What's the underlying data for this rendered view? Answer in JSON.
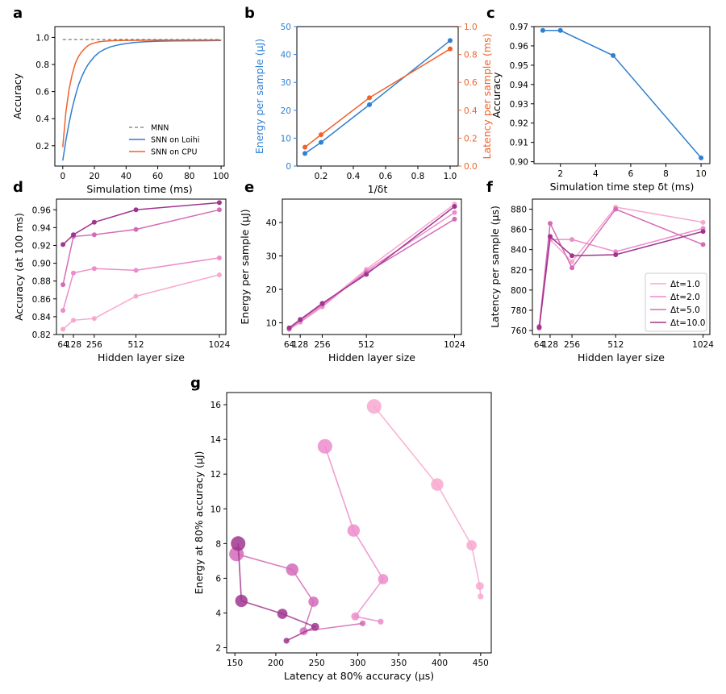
{
  "colors": {
    "blue": "#2f7fd1",
    "orange": "#f0622a",
    "mnn": "#555555",
    "dt1": "#f7a8cf",
    "dt2": "#ec8ccc",
    "dt5": "#d46bb8",
    "dt10": "#a0358f",
    "axis": "#000000"
  },
  "chart_data": [
    {
      "id": "a",
      "type": "line",
      "panel_label": "a",
      "title": "",
      "xlabel": "Simulation time (ms)",
      "ylabel": "Accuracy",
      "xlim": [
        -5,
        102
      ],
      "ylim": [
        0.05,
        1.08
      ],
      "xticks": [
        "0",
        "20",
        "40",
        "60",
        "80",
        "100"
      ],
      "yticks": [
        "0.2",
        "0.4",
        "0.6",
        "0.8",
        "1.0"
      ],
      "legend_position": "bottom-right",
      "series": [
        {
          "name": "MNN",
          "color": "mnn",
          "dash": true,
          "x": [
            0,
            100
          ],
          "y": [
            0.985,
            0.985
          ]
        },
        {
          "name": "SNN on Loihi",
          "color": "blue",
          "x": [
            0,
            2,
            4,
            6,
            8,
            10,
            12,
            14,
            16,
            18,
            20,
            23,
            26,
            30,
            35,
            40,
            45,
            50,
            60,
            70,
            80,
            90,
            100
          ],
          "y": [
            0.09,
            0.24,
            0.37,
            0.48,
            0.57,
            0.65,
            0.71,
            0.76,
            0.8,
            0.83,
            0.86,
            0.89,
            0.91,
            0.93,
            0.945,
            0.955,
            0.962,
            0.967,
            0.972,
            0.974,
            0.975,
            0.976,
            0.977
          ]
        },
        {
          "name": "SNN on CPU",
          "color": "orange",
          "x": [
            0,
            2,
            4,
            6,
            8,
            10,
            12,
            14,
            16,
            18,
            20,
            23,
            26,
            30,
            35,
            40,
            50,
            60,
            80,
            100
          ],
          "y": [
            0.19,
            0.45,
            0.62,
            0.73,
            0.81,
            0.86,
            0.895,
            0.92,
            0.94,
            0.952,
            0.96,
            0.968,
            0.972,
            0.975,
            0.977,
            0.978,
            0.979,
            0.98,
            0.98,
            0.98
          ]
        }
      ]
    },
    {
      "id": "b",
      "type": "line",
      "panel_label": "b",
      "xlabel": "1/δt",
      "ylabel": "Energy per sample (μJ)",
      "ylabel_right": "Latency per sample (ms)",
      "xlim": [
        0.05,
        1.05
      ],
      "ylim": [
        0,
        50
      ],
      "ylim_right": [
        0,
        1.0
      ],
      "xticks": [
        "0.2",
        "0.4",
        "0.6",
        "0.8",
        "1.0"
      ],
      "yticks": [
        "0",
        "10",
        "20",
        "30",
        "40",
        "50"
      ],
      "yticks_right": [
        "0.0",
        "0.2",
        "0.4",
        "0.6",
        "0.8",
        "1.0"
      ],
      "series": [
        {
          "name": "Energy",
          "color": "blue",
          "axis": "left",
          "x": [
            0.1,
            0.2,
            0.5,
            1.0
          ],
          "y": [
            4.5,
            8.5,
            22.0,
            45.0
          ]
        },
        {
          "name": "Latency",
          "color": "orange",
          "axis": "right",
          "x": [
            0.1,
            0.2,
            0.5,
            1.0
          ],
          "y": [
            0.135,
            0.225,
            0.49,
            0.84
          ]
        }
      ]
    },
    {
      "id": "c",
      "type": "line",
      "panel_label": "c",
      "xlabel": "Simulation time step δt (ms)",
      "ylabel": "Accuracy",
      "xlim": [
        0.5,
        10.5
      ],
      "ylim": [
        0.899,
        0.97
      ],
      "xticks": [
        "2",
        "4",
        "6",
        "8",
        "10"
      ],
      "yticks": [
        "0.90",
        "0.91",
        "0.92",
        "0.93",
        "0.94",
        "0.95",
        "0.96",
        "0.97"
      ],
      "series": [
        {
          "name": "Accuracy",
          "color": "blue",
          "x": [
            1,
            2,
            5,
            10
          ],
          "y": [
            0.968,
            0.968,
            0.955,
            0.902
          ]
        }
      ]
    },
    {
      "id": "d",
      "type": "line",
      "panel_label": "d",
      "xlabel": "Hidden layer size",
      "ylabel": "Accuracy (at 100 ms)",
      "xlim": [
        24,
        1064
      ],
      "ylim": [
        0.82,
        0.972
      ],
      "xticks": [
        "64",
        "128",
        "256",
        "512",
        "1024"
      ],
      "yticks": [
        "0.82",
        "0.84",
        "0.86",
        "0.88",
        "0.90",
        "0.92",
        "0.94",
        "0.96"
      ],
      "series": [
        {
          "name": "Δt=1.0",
          "color": "dt1",
          "x": [
            64,
            128,
            256,
            512,
            1024
          ],
          "y": [
            0.826,
            0.836,
            0.838,
            0.863,
            0.887
          ]
        },
        {
          "name": "Δt=2.0",
          "color": "dt2",
          "x": [
            64,
            128,
            256,
            512,
            1024
          ],
          "y": [
            0.847,
            0.889,
            0.894,
            0.892,
            0.906
          ]
        },
        {
          "name": "Δt=5.0",
          "color": "dt5",
          "x": [
            64,
            128,
            256,
            512,
            1024
          ],
          "y": [
            0.876,
            0.93,
            0.932,
            0.938,
            0.96
          ]
        },
        {
          "name": "Δt=10.0",
          "color": "dt10",
          "x": [
            64,
            128,
            256,
            512,
            1024
          ],
          "y": [
            0.921,
            0.932,
            0.946,
            0.96,
            0.968
          ]
        }
      ]
    },
    {
      "id": "e",
      "type": "line",
      "panel_label": "e",
      "xlabel": "Hidden layer size",
      "ylabel": "Energy per sample (μJ)",
      "xlim": [
        24,
        1064
      ],
      "ylim": [
        6.5,
        47
      ],
      "xticks": [
        "64",
        "128",
        "256",
        "512",
        "1024"
      ],
      "yticks": [
        "10",
        "20",
        "30",
        "40"
      ],
      "series": [
        {
          "name": "Δt=1.0",
          "color": "dt1",
          "x": [
            64,
            128,
            256,
            512,
            1024
          ],
          "y": [
            8.2,
            10.5,
            15.2,
            26.0,
            45.5
          ]
        },
        {
          "name": "Δt=2.0",
          "color": "dt2",
          "x": [
            64,
            128,
            256,
            512,
            1024
          ],
          "y": [
            8.0,
            10.2,
            14.8,
            25.5,
            43.0
          ]
        },
        {
          "name": "Δt=5.0",
          "color": "dt5",
          "x": [
            64,
            128,
            256,
            512,
            1024
          ],
          "y": [
            8.3,
            10.8,
            15.5,
            25.0,
            41.0
          ]
        },
        {
          "name": "Δt=10.0",
          "color": "dt10",
          "x": [
            64,
            128,
            256,
            512,
            1024
          ],
          "y": [
            8.5,
            11.0,
            15.8,
            24.5,
            44.8
          ]
        }
      ]
    },
    {
      "id": "f",
      "type": "line",
      "panel_label": "f",
      "xlabel": "Hidden layer size",
      "ylabel": "Latency per sample (μs)",
      "xlim": [
        24,
        1064
      ],
      "ylim": [
        756,
        890
      ],
      "xticks": [
        "64",
        "128",
        "256",
        "512",
        "1024"
      ],
      "yticks": [
        "760",
        "780",
        "800",
        "820",
        "840",
        "860",
        "880"
      ],
      "legend_position": "bottom-right",
      "series": [
        {
          "name": "Δt=1.0",
          "color": "dt1",
          "x": [
            64,
            128,
            256,
            512,
            1024
          ],
          "y": [
            762,
            850,
            828,
            882,
            867
          ]
        },
        {
          "name": "Δt=2.0",
          "color": "dt2",
          "x": [
            64,
            128,
            256,
            512,
            1024
          ],
          "y": [
            763,
            850,
            850,
            838,
            861
          ]
        },
        {
          "name": "Δt=5.0",
          "color": "dt5",
          "x": [
            64,
            128,
            256,
            512,
            1024
          ],
          "y": [
            764,
            866,
            822,
            880,
            845
          ]
        },
        {
          "name": "Δt=10.0",
          "color": "dt10",
          "x": [
            64,
            128,
            256,
            512,
            1024
          ],
          "y": [
            763,
            853,
            834,
            835,
            858
          ]
        }
      ]
    },
    {
      "id": "g",
      "type": "scatter",
      "panel_label": "g",
      "xlabel": "Latency at 80% accuracy (μs)",
      "ylabel": "Energy at 80% accuracy (μJ)",
      "xlim": [
        140,
        463
      ],
      "ylim": [
        1.7,
        16.7
      ],
      "xticks": [
        "150",
        "200",
        "250",
        "300",
        "350",
        "400",
        "450"
      ],
      "yticks": [
        "2",
        "4",
        "6",
        "8",
        "10",
        "12",
        "14",
        "16"
      ],
      "note": "marker size increases with hidden layer size (64, 128, 256, 512, 1024)",
      "series": [
        {
          "name": "Δt=1.0",
          "color": "dt1",
          "x": [
            450,
            449,
            439,
            397,
            320
          ],
          "y": [
            4.95,
            5.55,
            7.9,
            11.4,
            15.9
          ],
          "sizes": [
            1,
            2,
            3,
            4,
            5
          ]
        },
        {
          "name": "Δt=2.0",
          "color": "dt2",
          "x": [
            328,
            297,
            331,
            295,
            260
          ],
          "y": [
            3.5,
            3.8,
            5.95,
            8.75,
            13.6
          ],
          "sizes": [
            1,
            2,
            3,
            4,
            5
          ]
        },
        {
          "name": "Δt=5.0",
          "color": "dt5",
          "x": [
            306,
            234,
            246,
            220,
            152
          ],
          "y": [
            3.4,
            2.95,
            4.65,
            6.5,
            7.4
          ],
          "sizes": [
            1,
            2,
            3,
            4,
            5
          ]
        },
        {
          "name": "Δt=10.0",
          "color": "dt10",
          "x": [
            213,
            248,
            208,
            158,
            154
          ],
          "y": [
            2.4,
            3.2,
            3.95,
            4.7,
            8.0
          ],
          "sizes": [
            1,
            2,
            3,
            4,
            5
          ]
        }
      ]
    }
  ]
}
